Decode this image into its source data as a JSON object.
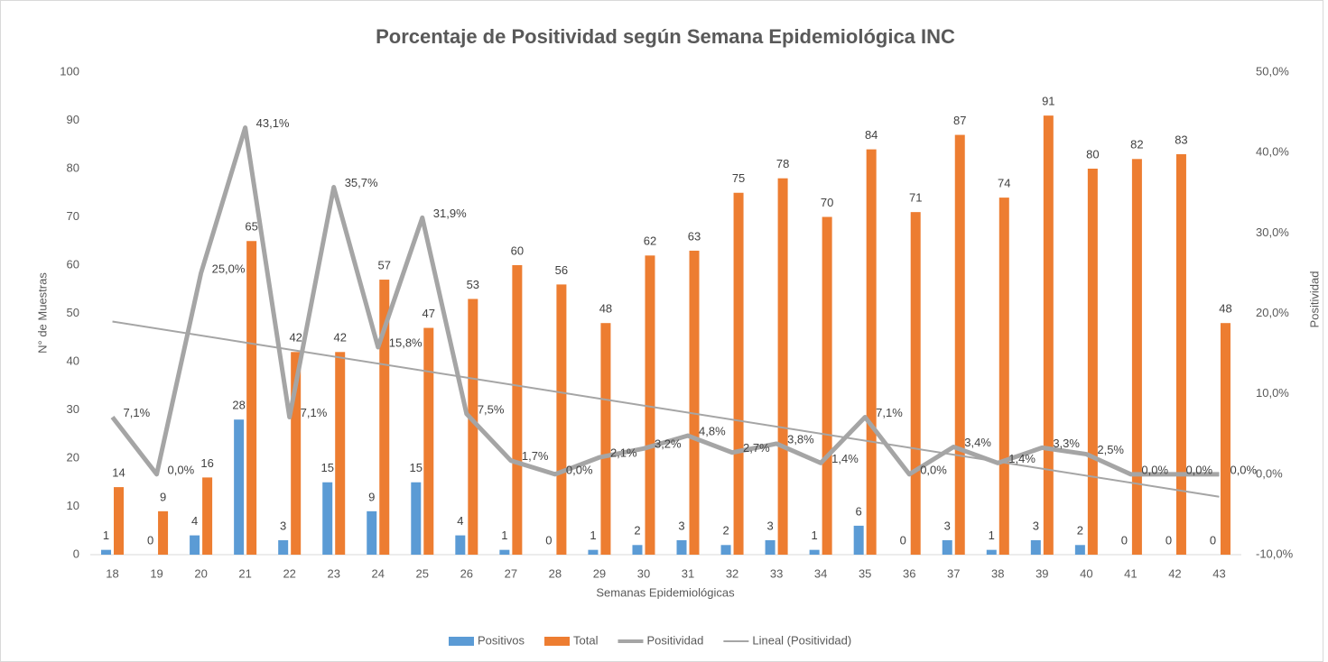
{
  "chart_data": {
    "type": "bar_line",
    "title": "Porcentaje de Positividad según Semana Epidemiológica INC",
    "x_label": "Semanas Epidemiológicas",
    "y_label": "N° de Muestras",
    "y2_label": "Positividad",
    "categories": [
      "18",
      "19",
      "20",
      "21",
      "22",
      "23",
      "24",
      "25",
      "26",
      "27",
      "28",
      "29",
      "30",
      "31",
      "32",
      "33",
      "34",
      "35",
      "36",
      "37",
      "38",
      "39",
      "40",
      "41",
      "42",
      "43"
    ],
    "series": [
      {
        "name": "Positivos",
        "type": "bar",
        "color": "#5b9bd5",
        "values": [
          1,
          0,
          4,
          28,
          3,
          15,
          9,
          15,
          4,
          1,
          0,
          1,
          2,
          3,
          2,
          3,
          1,
          6,
          0,
          3,
          1,
          3,
          2,
          0,
          0,
          0
        ]
      },
      {
        "name": "Total",
        "type": "bar",
        "color": "#ed7d31",
        "values": [
          14,
          9,
          16,
          65,
          42,
          42,
          57,
          47,
          53,
          60,
          56,
          48,
          62,
          63,
          75,
          78,
          70,
          84,
          71,
          87,
          74,
          91,
          80,
          82,
          83,
          48
        ]
      },
      {
        "name": "Positividad",
        "type": "line",
        "axis": "y2",
        "color": "#a5a5a5",
        "values": [
          7.1,
          0.0,
          25.0,
          43.1,
          7.1,
          35.7,
          15.8,
          31.9,
          7.5,
          1.7,
          0.0,
          2.1,
          3.2,
          4.8,
          2.7,
          3.8,
          1.4,
          7.1,
          0.0,
          3.4,
          1.4,
          3.3,
          2.5,
          0.0,
          0.0,
          0.0
        ],
        "value_labels": [
          "7,1%",
          "0,0%",
          "25,0%",
          "43,1%",
          "7,1%",
          "35,7%",
          "15,8%",
          "31,9%",
          "7,5%",
          "1,7%",
          "0,0%",
          "2,1%",
          "3,2%",
          "4,8%",
          "2,7%",
          "3,8%",
          "1,4%",
          "7,1%",
          "0,0%",
          "3,4%",
          "1,4%",
          "3,3%",
          "2,5%",
          "0,0%",
          "0,0%",
          "0,0%"
        ]
      }
    ],
    "trendline": {
      "name": "Lineal (Positividad)",
      "of_series": 2,
      "kind": "linear",
      "color": "#a5a5a5"
    },
    "ylim": [
      0,
      100
    ],
    "yticks": [
      0,
      10,
      20,
      30,
      40,
      50,
      60,
      70,
      80,
      90,
      100
    ],
    "y2lim": [
      -10,
      50
    ],
    "y2ticks": [
      {
        "value": -10,
        "label": "-10,0%"
      },
      {
        "value": 0,
        "label": "0,0%"
      },
      {
        "value": 10,
        "label": "10,0%"
      },
      {
        "value": 20,
        "label": "20,0%"
      },
      {
        "value": 30,
        "label": "30,0%"
      },
      {
        "value": 40,
        "label": "40,0%"
      },
      {
        "value": 50,
        "label": "50,0%"
      }
    ],
    "grid": false,
    "legend": "bottom"
  }
}
